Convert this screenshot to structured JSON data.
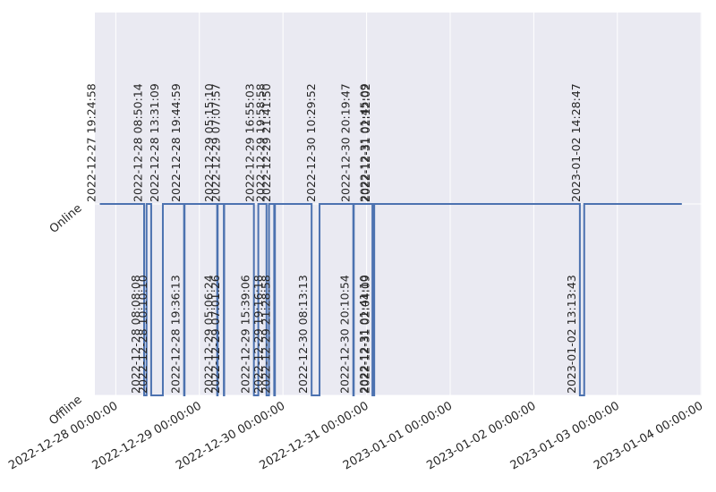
{
  "chart_data": {
    "type": "line",
    "step": true,
    "grid": true,
    "colors": {
      "background": "#eaeaf2",
      "grid": "#ffffff",
      "line": "#4c72b0",
      "text": "#262626"
    },
    "xlim": [
      "2022-12-27T18:00:00",
      "2023-01-04T00:12:00"
    ],
    "y_categories": [
      "Offline",
      "Online"
    ],
    "x_ticks": [
      "2022-12-28 00:00:00",
      "2022-12-29 00:00:00",
      "2022-12-30 00:00:00",
      "2022-12-31 00:00:00",
      "2023-01-01 00:00:00",
      "2023-01-02 00:00:00",
      "2023-01-03 00:00:00",
      "2023-01-04 00:00:00"
    ],
    "end_time": "2023-01-03 18:30:00",
    "events": [
      {
        "time": "2022-12-27 19:24:58",
        "status": "Online"
      },
      {
        "time": "2022-12-28 08:08:08",
        "status": "Offline"
      },
      {
        "time": "2022-12-28 08:50:14",
        "status": "Online"
      },
      {
        "time": "2022-12-28 10:10:10",
        "status": "Offline"
      },
      {
        "time": "2022-12-28 13:31:09",
        "status": "Online"
      },
      {
        "time": "2022-12-28 19:36:13",
        "status": "Offline"
      },
      {
        "time": "2022-12-28 19:44:59",
        "status": "Online"
      },
      {
        "time": "2022-12-29 05:06:24",
        "status": "Offline"
      },
      {
        "time": "2022-12-29 05:15:10",
        "status": "Online"
      },
      {
        "time": "2022-12-29 07:01:26",
        "status": "Offline"
      },
      {
        "time": "2022-12-29 07:07:57",
        "status": "Online"
      },
      {
        "time": "2022-12-29 15:39:06",
        "status": "Offline"
      },
      {
        "time": "2022-12-29 16:55:03",
        "status": "Online"
      },
      {
        "time": "2022-12-29 19:16:18",
        "status": "Offline"
      },
      {
        "time": "2022-12-29 19:58:58",
        "status": "Online"
      },
      {
        "time": "2022-12-29 21:28:58",
        "status": "Offline"
      },
      {
        "time": "2022-12-29 21:41:50",
        "status": "Online"
      },
      {
        "time": "2022-12-30 08:13:13",
        "status": "Offline"
      },
      {
        "time": "2022-12-30 10:29:52",
        "status": "Online"
      },
      {
        "time": "2022-12-30 20:10:54",
        "status": "Offline"
      },
      {
        "time": "2022-12-30 20:19:47",
        "status": "Online"
      },
      {
        "time": "2022-12-31 01:41:10",
        "status": "Offline"
      },
      {
        "time": "2022-12-31 01:45:09",
        "status": "Online"
      },
      {
        "time": "2022-12-31 02:04:09",
        "status": "Offline"
      },
      {
        "time": "2022-12-31 02:12:02",
        "status": "Online"
      },
      {
        "time": "2023-01-02 13:13:43",
        "status": "Offline"
      },
      {
        "time": "2023-01-02 14:28:47",
        "status": "Online"
      }
    ]
  }
}
